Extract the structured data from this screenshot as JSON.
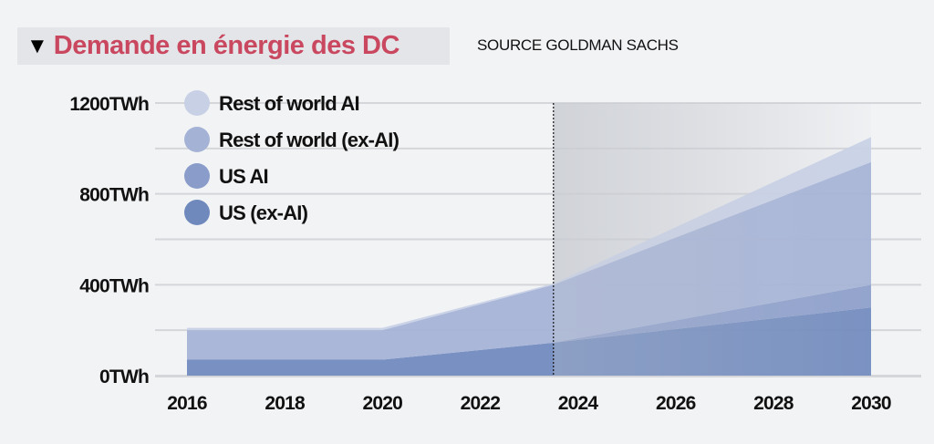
{
  "title": "Demande en énergie des DC",
  "title_icon": "triangle-down-icon",
  "source": "SOURCE GOLDMAN SACHS",
  "colors": {
    "title": "#c9485f",
    "background": "#f2f3f5"
  },
  "chart_data": {
    "type": "area",
    "stacked": true,
    "x": [
      2016,
      2020,
      2023.5,
      2030
    ],
    "xlim": [
      2016,
      2030
    ],
    "ylim": [
      0,
      1200
    ],
    "x_ticks": [
      "2016",
      "2018",
      "2020",
      "2022",
      "2024",
      "2026",
      "2028",
      "2030"
    ],
    "y_ticks": [
      "0TWh",
      "400TWh",
      "800TWh",
      "1200TWh"
    ],
    "grid": true,
    "projection_start": 2023.5,
    "legend_position": "top-left",
    "series": [
      {
        "name": "US (ex-AI)",
        "color": "#6f89bd",
        "values": [
          70,
          70,
          145,
          300
        ]
      },
      {
        "name": "US AI",
        "color": "#8a9cca",
        "values": [
          0,
          0,
          0,
          100
        ]
      },
      {
        "name": "Rest of world (ex-AI)",
        "color": "#a4b2d6",
        "values": [
          130,
          130,
          255,
          540
        ]
      },
      {
        "name": "Rest of world AI",
        "color": "#c8d0e6",
        "values": [
          10,
          10,
          5,
          110
        ]
      }
    ]
  }
}
